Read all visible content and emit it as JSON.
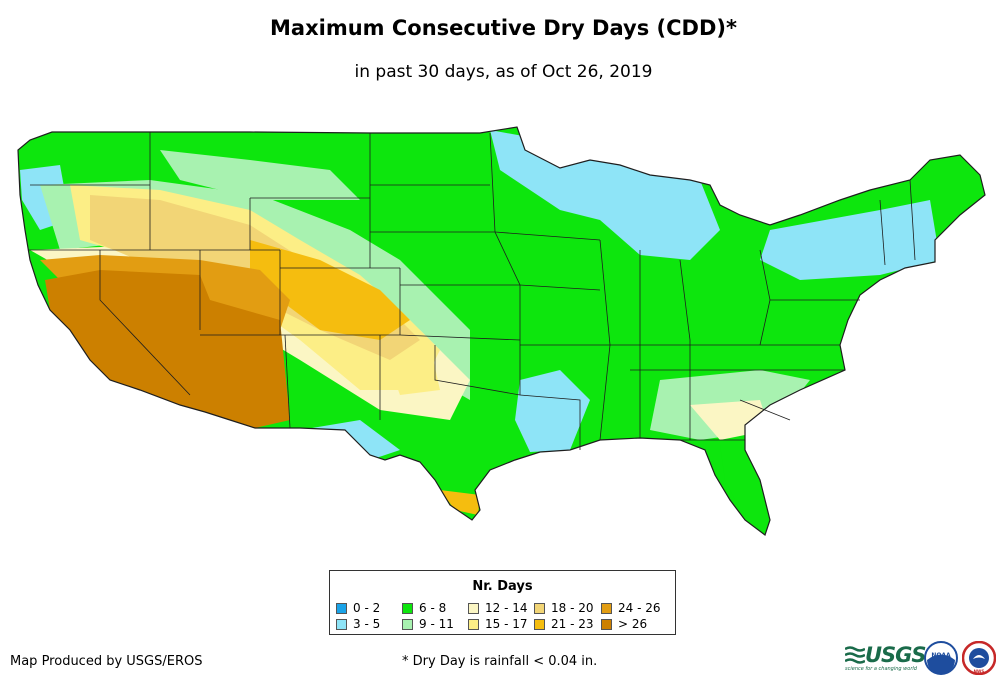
{
  "title": "Maximum Consecutive Dry Days (CDD)*",
  "subtitle": "in past 30 days, as of Oct 26, 2019",
  "legend": {
    "title": "Nr. Days",
    "items": [
      {
        "label": "0 - 2",
        "color": "#1aa3e8"
      },
      {
        "label": "3 - 5",
        "color": "#8ee4f7"
      },
      {
        "label": "6 - 8",
        "color": "#0de60d"
      },
      {
        "label": "9 - 11",
        "color": "#a8f2b0"
      },
      {
        "label": "12 - 14",
        "color": "#fbf6c4"
      },
      {
        "label": "15 - 17",
        "color": "#fcee86"
      },
      {
        "label": "18 - 20",
        "color": "#f2d576"
      },
      {
        "label": "21 - 23",
        "color": "#f5bd0f"
      },
      {
        "label": "24 - 26",
        "color": "#e29d12"
      },
      {
        "label": "> 26",
        "color": "#cc8000"
      }
    ]
  },
  "credit": "Map Produced by USGS/EROS",
  "footnote": "* Dry Day is rainfall < 0.04 in.",
  "logos": {
    "usgs": "USGS",
    "usgs_tagline": "science for a changing world",
    "noaa": "NOAA",
    "nws": "NWS"
  }
}
